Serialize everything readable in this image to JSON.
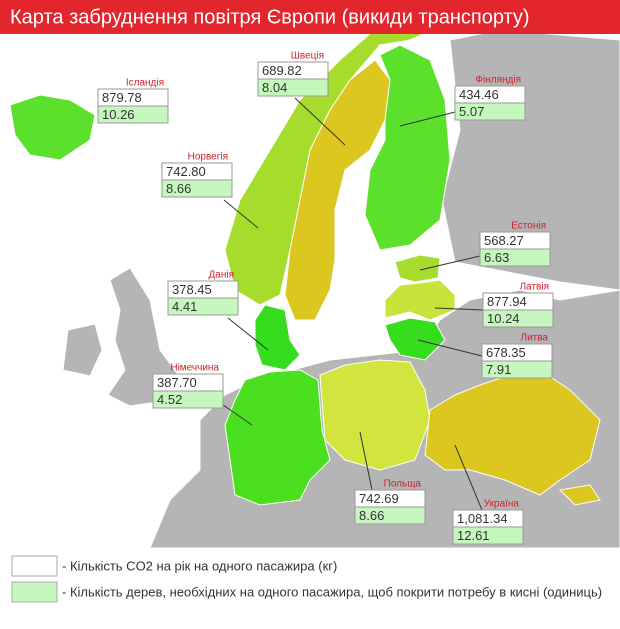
{
  "title": "Карта забруднення повітря Європи (викиди транспорту)",
  "countries": [
    {
      "name": "Ісландія",
      "co2": "879.78",
      "trees": "10.26",
      "color": "#5be02b"
    },
    {
      "name": "Швеція",
      "co2": "689.82",
      "trees": "8.04",
      "color": "#dcc620"
    },
    {
      "name": "Фінляндія",
      "co2": "434.46",
      "trees": "5.07",
      "color": "#5be02b"
    },
    {
      "name": "Норвегія",
      "co2": "742.80",
      "trees": "8.66",
      "color": "#a6dc2c"
    },
    {
      "name": "Естонія",
      "co2": "568.27",
      "trees": "6.63",
      "color": "#a6dc2c"
    },
    {
      "name": "Латвія",
      "co2": "877.94",
      "trees": "10.24",
      "color": "#c8e43a"
    },
    {
      "name": "Данія",
      "co2": "378.45",
      "trees": "4.41",
      "color": "#36dc1e"
    },
    {
      "name": "Литва",
      "co2": "678.35",
      "trees": "7.91",
      "color": "#36dc1e"
    },
    {
      "name": "Німеччина",
      "co2": "387.70",
      "trees": "4.52",
      "color": "#4ae020"
    },
    {
      "name": "Польща",
      "co2": "742.69",
      "trees": "8.66",
      "color": "#d2e43e"
    },
    {
      "name": "Україна",
      "co2": "1,081.34",
      "trees": "12.61",
      "color": "#dcc620"
    }
  ],
  "legend": {
    "co2": "- Кількість CO2 на рік на одного пасажира (кг)",
    "trees": "- Кількість дерев, необхідних на одного пасажира, щоб покрити потребу в кисні (одиниць)"
  }
}
